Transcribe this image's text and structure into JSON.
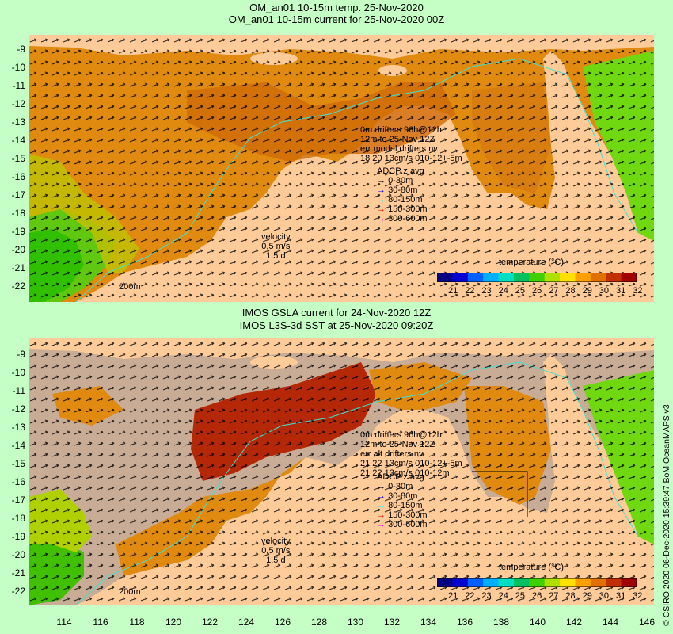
{
  "top": {
    "title1": "OM_an01 10-15m temp. 25-Nov-2020",
    "title2": "OM_an01 10-15m current for 25-Nov-2020 00Z",
    "drifters_lines": [
      "0m  drifters 96h@12h",
      "12m  to 25-Nov 12Z",
      "err model drifters nv",
      "18 20 13cm/s 010-12+-5m"
    ],
    "velocity": [
      "velocity",
      "0.5 m/s",
      "1.5 d"
    ],
    "depth_label": "200m"
  },
  "bottom": {
    "title1": "IMOS GSLA current for 24-Nov-2020 12Z",
    "title2": "IMOS L3S-3d SST at 25-Nov-2020 09:20Z",
    "drifters_lines": [
      "0m  drifters 96h@12h",
      "12m  to 25-Nov 12Z",
      "err alt drifters nv",
      "21 22 13cm/s 010-12+-5m",
      "21 22 13cm/s 010-12m"
    ],
    "velocity": [
      "velocity",
      "0.5 m/s",
      "1.5 d"
    ],
    "depth_label": "200m"
  },
  "adcp": {
    "title": "ADCP z avg",
    "items": [
      {
        "label": "0-30m",
        "color": "#000000"
      },
      {
        "label": "30-80m",
        "color": "#0000ff"
      },
      {
        "label": "80-150m",
        "color": "#00ffff"
      },
      {
        "label": "150-300m",
        "color": "#ff0000"
      },
      {
        "label": "300-600m",
        "color": "#ff00ff"
      }
    ]
  },
  "colorbar": {
    "title": "temperature (°C)",
    "ticks": [
      "21",
      "22",
      "23",
      "24",
      "25",
      "26",
      "27",
      "28",
      "29",
      "30",
      "31",
      "32"
    ],
    "colors": [
      "#000080",
      "#0000d0",
      "#0060ff",
      "#00b0ff",
      "#00e0c0",
      "#00c060",
      "#40d000",
      "#b0e000",
      "#ffe000",
      "#ffa000",
      "#e07000",
      "#c03000",
      "#a00000"
    ]
  },
  "yaxis": [
    "-9",
    "-10",
    "-11",
    "-12",
    "-13",
    "-14",
    "-15",
    "-16",
    "-17",
    "-18",
    "-19",
    "-20",
    "-21",
    "-22"
  ],
  "xaxis": [
    "114",
    "116",
    "118",
    "120",
    "122",
    "124",
    "126",
    "128",
    "130",
    "132",
    "134",
    "136",
    "138",
    "140",
    "142",
    "144",
    "146"
  ],
  "credit": "© CSIRO 2020  06-Dec-2020 15:39:47 BoM OceanMAPS v3",
  "colors": {
    "background": "#c5ffc5",
    "land": "#ffcc99",
    "nodata": "#c8ac96",
    "warm": "#e08a10",
    "hot": "#b42808",
    "cool": "#40d000",
    "contour": "#40e0d0"
  }
}
